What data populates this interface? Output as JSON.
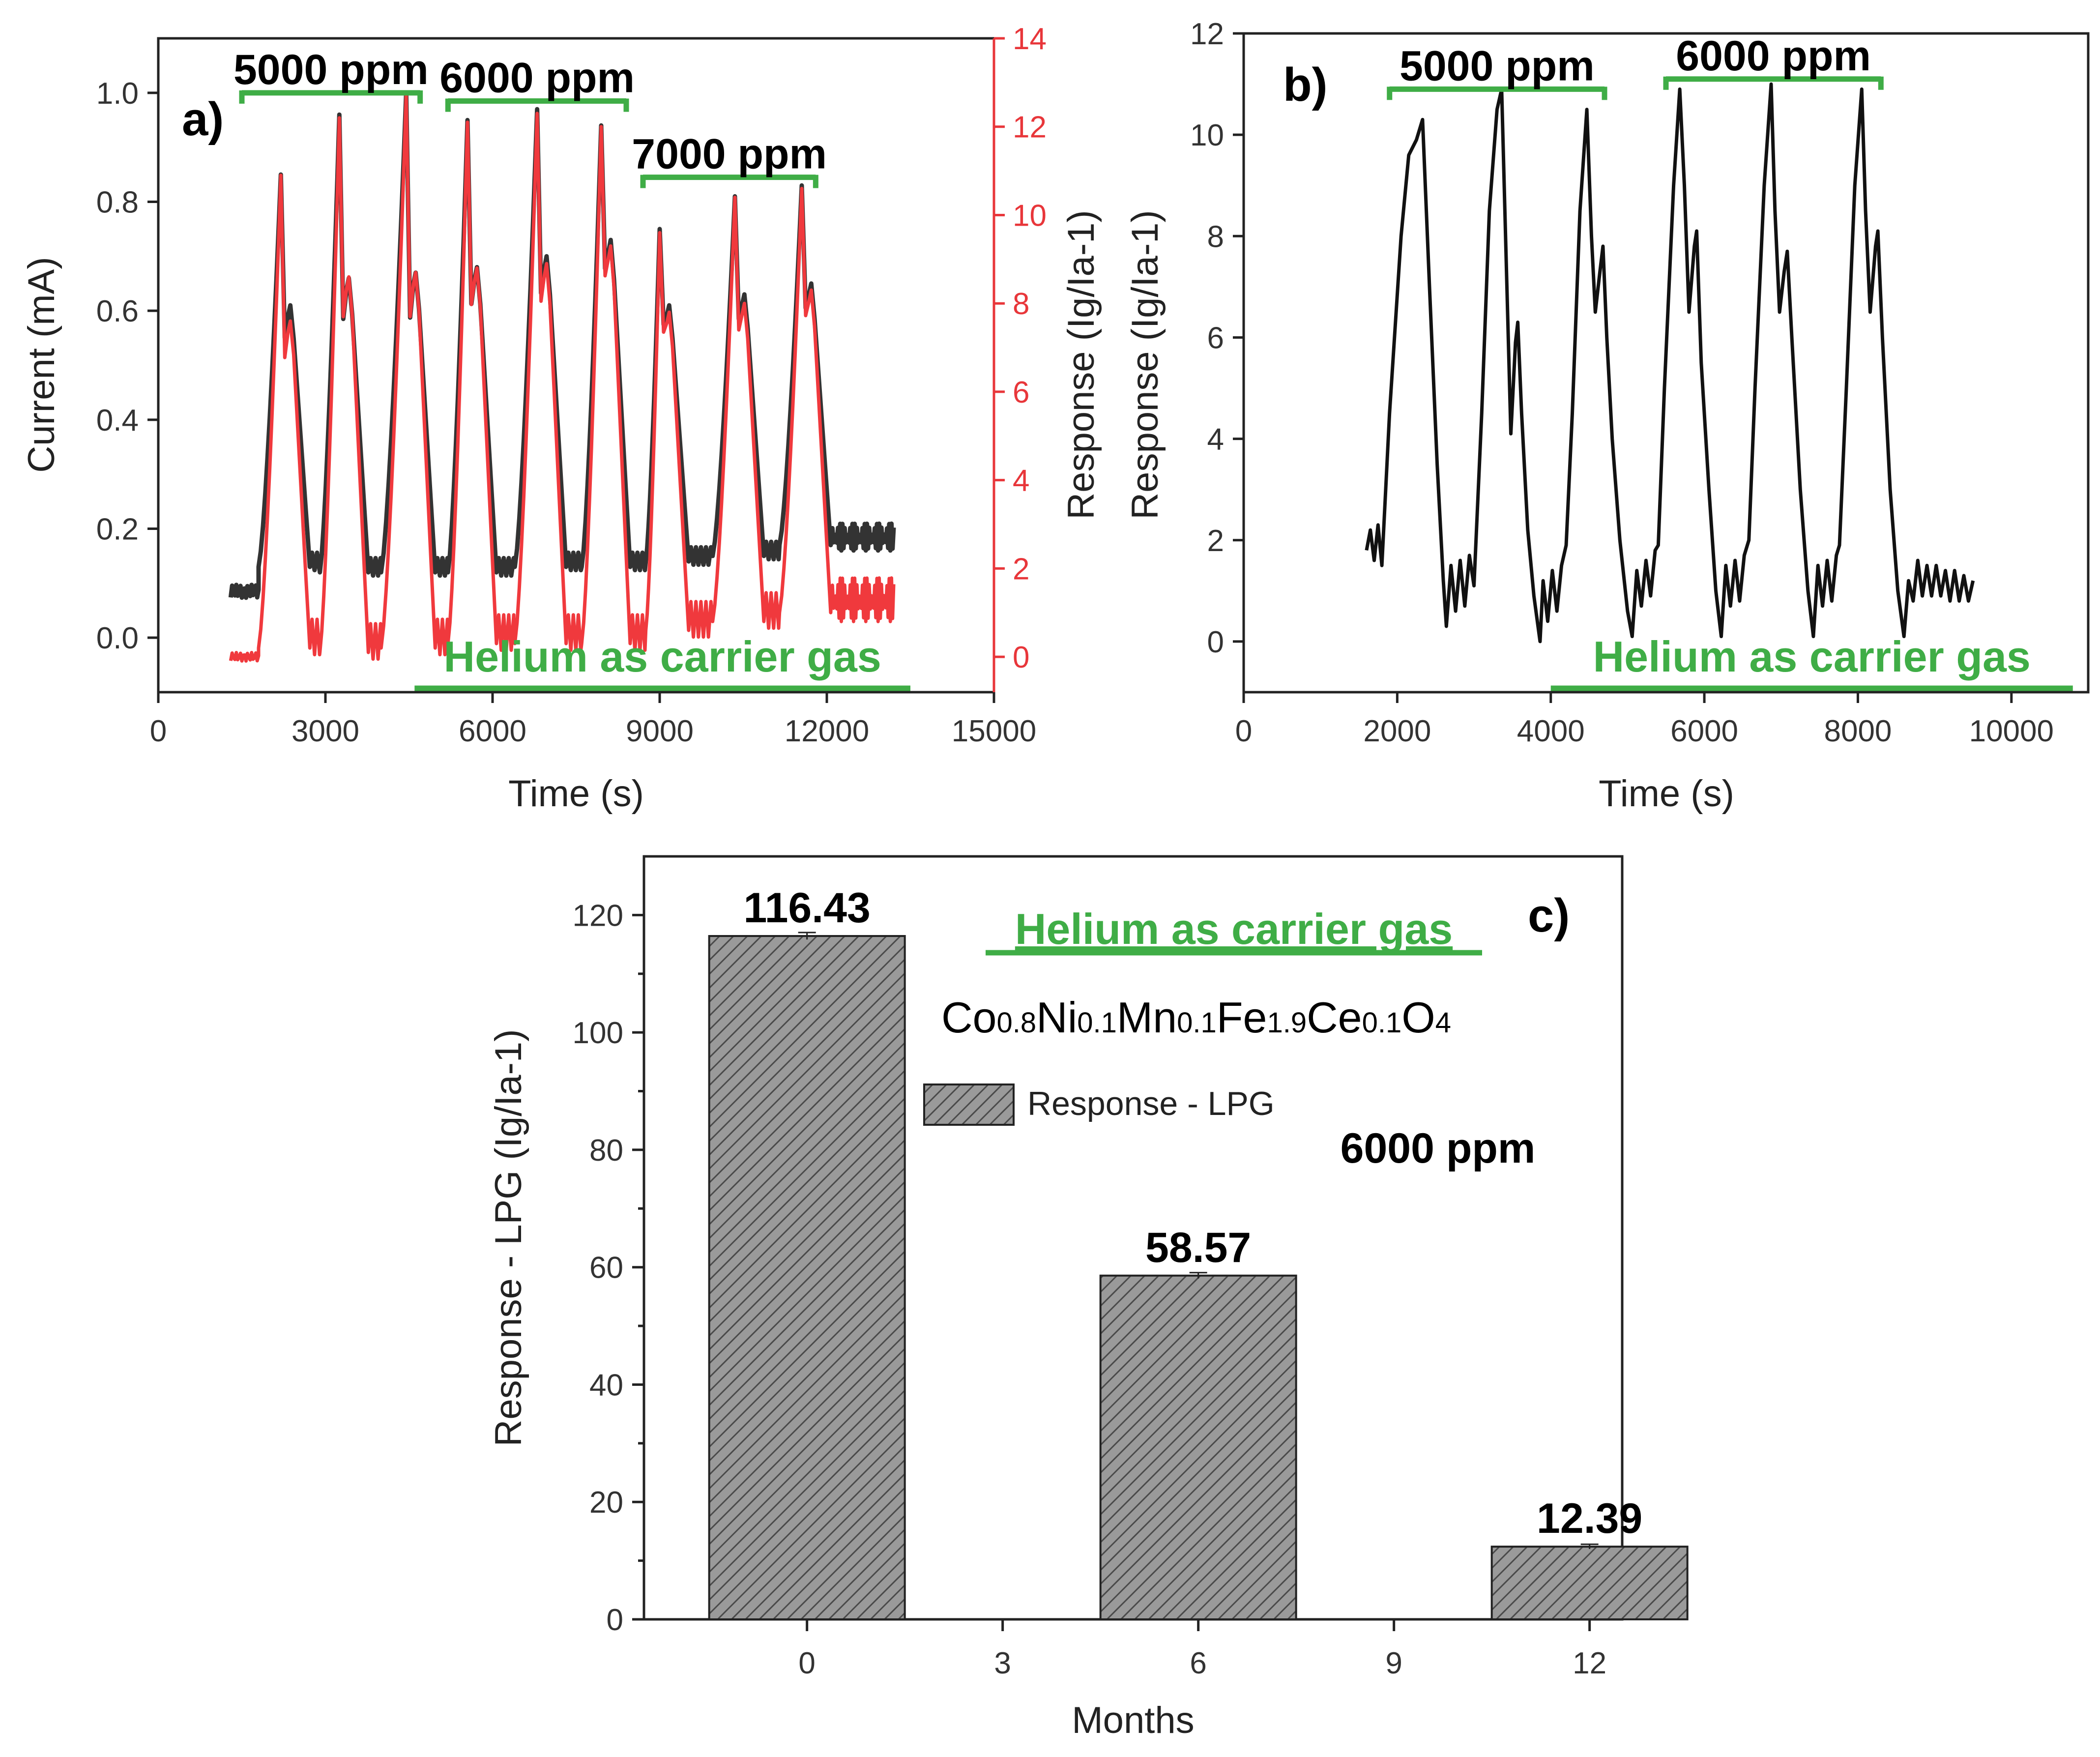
{
  "chart_data": [
    {
      "panel": "a)",
      "type": "line",
      "xlabel": "Time (s)",
      "ylabel": "Current (mA)",
      "ylabel_right": "Response (Ig/Ia-1)",
      "xlim": [
        0,
        15000
      ],
      "ylim": [
        -0.1,
        1.1
      ],
      "ylim_right": [
        -0.8,
        14
      ],
      "xticks": [
        "0",
        "3000",
        "6000",
        "9000",
        "12000",
        "15000"
      ],
      "yticks": [
        "0.0",
        "0.2",
        "0.4",
        "0.6",
        "0.8",
        "1.0"
      ],
      "yticks_right": [
        "0",
        "2",
        "4",
        "6",
        "8",
        "10",
        "12",
        "14"
      ],
      "baseline_segments": [
        {
          "start": 1300,
          "end": 1800,
          "current": 0.085,
          "response": 0.0
        },
        {
          "start": 12100,
          "end": 13200,
          "current": 0.185,
          "response": 1.3
        }
      ],
      "cycles": [
        {
          "t0": 1800,
          "peak_time": 2200,
          "current_peak": 0.85,
          "response_peak": 10.9,
          "current_shoulder": 0.61,
          "response_shoulder": 7.6,
          "current_min": 0.13,
          "response_min": 0.2
        },
        {
          "t0": 2900,
          "peak_time": 3250,
          "current_peak": 0.96,
          "response_peak": 12.2,
          "current_shoulder": 0.66,
          "response_shoulder": 8.6,
          "current_min": 0.12,
          "response_min": 0.1
        },
        {
          "t0": 4000,
          "peak_time": 4450,
          "current_peak": 1.0,
          "response_peak": 12.7,
          "current_shoulder": 0.67,
          "response_shoulder": 8.7,
          "current_min": 0.12,
          "response_min": 0.2
        },
        {
          "t0": 5200,
          "peak_time": 5550,
          "current_peak": 0.95,
          "response_peak": 12.1,
          "current_shoulder": 0.68,
          "response_shoulder": 8.8,
          "current_min": 0.12,
          "response_min": 0.3
        },
        {
          "t0": 6400,
          "peak_time": 6800,
          "current_peak": 0.97,
          "response_peak": 12.3,
          "current_shoulder": 0.7,
          "response_shoulder": 8.9,
          "current_min": 0.13,
          "response_min": 0.3
        },
        {
          "t0": 7600,
          "peak_time": 7950,
          "current_peak": 0.94,
          "response_peak": 12.0,
          "current_shoulder": 0.73,
          "response_shoulder": 9.3,
          "current_min": 0.13,
          "response_min": 0.3
        },
        {
          "t0": 8750,
          "peak_time": 9000,
          "current_peak": 0.75,
          "response_peak": 9.6,
          "current_shoulder": 0.61,
          "response_shoulder": 7.8,
          "current_min": 0.14,
          "response_min": 0.6
        },
        {
          "t0": 9950,
          "peak_time": 10350,
          "current_peak": 0.81,
          "response_peak": 10.4,
          "current_shoulder": 0.63,
          "response_shoulder": 8.0,
          "current_min": 0.15,
          "response_min": 0.8
        },
        {
          "t0": 11150,
          "peak_time": 11550,
          "current_peak": 0.83,
          "response_peak": 10.6,
          "current_shoulder": 0.65,
          "response_shoulder": 8.3,
          "current_min": 0.17,
          "response_min": 1.0
        }
      ],
      "series": [
        {
          "name": "Current (mA)",
          "color": "#333333",
          "axis": "left"
        },
        {
          "name": "Response (Ig/Ia-1)",
          "color": "#f0393d",
          "axis": "right"
        }
      ],
      "annotations": [
        {
          "text": "5000 ppm",
          "x_start": 1500,
          "x_end": 4700,
          "value": 1.0
        },
        {
          "text": "6000 ppm",
          "x_start": 5200,
          "x_end": 8400,
          "value": 0.985
        },
        {
          "text": "7000 ppm",
          "x_start": 8700,
          "x_end": 11800,
          "value": 0.845
        }
      ],
      "carrier_label": {
        "text": "Helium as carrier gas",
        "x_start": 4600,
        "x_end": 13500
      }
    },
    {
      "panel": "b)",
      "type": "line",
      "xlabel": "Time (s)",
      "ylabel": "Response (Ig/Ia-1)",
      "xlim": [
        0,
        11000
      ],
      "ylim": [
        -1,
        12
      ],
      "xticks": [
        "0",
        "2000",
        "4000",
        "6000",
        "8000",
        "10000"
      ],
      "yticks": [
        "0",
        "2",
        "4",
        "6",
        "8",
        "10",
        "12"
      ],
      "points": [
        [
          1600,
          1.8
        ],
        [
          1650,
          2.2
        ],
        [
          1700,
          1.6
        ],
        [
          1750,
          2.3
        ],
        [
          1800,
          1.5
        ],
        [
          1900,
          4.5
        ],
        [
          2050,
          8.0
        ],
        [
          2150,
          9.6
        ],
        [
          2250,
          9.9
        ],
        [
          2330,
          10.3
        ],
        [
          2420,
          7.0
        ],
        [
          2520,
          3.5
        ],
        [
          2600,
          1.2
        ],
        [
          2640,
          0.3
        ],
        [
          2700,
          1.5
        ],
        [
          2760,
          0.6
        ],
        [
          2820,
          1.6
        ],
        [
          2880,
          0.7
        ],
        [
          2940,
          1.7
        ],
        [
          3000,
          1.1
        ],
        [
          3100,
          4.5
        ],
        [
          3200,
          8.5
        ],
        [
          3300,
          10.5
        ],
        [
          3360,
          10.9
        ],
        [
          3420,
          7.5
        ],
        [
          3480,
          4.1
        ],
        [
          3540,
          5.9
        ],
        [
          3570,
          6.3
        ],
        [
          3620,
          4.5
        ],
        [
          3700,
          2.2
        ],
        [
          3780,
          0.9
        ],
        [
          3860,
          0.0
        ],
        [
          3900,
          1.2
        ],
        [
          3960,
          0.4
        ],
        [
          4020,
          1.4
        ],
        [
          4080,
          0.6
        ],
        [
          4140,
          1.5
        ],
        [
          4200,
          1.9
        ],
        [
          4280,
          4.5
        ],
        [
          4380,
          8.5
        ],
        [
          4470,
          10.5
        ],
        [
          4530,
          8.0
        ],
        [
          4580,
          6.5
        ],
        [
          4640,
          7.3
        ],
        [
          4680,
          7.8
        ],
        [
          4730,
          6.0
        ],
        [
          4800,
          4.0
        ],
        [
          4900,
          2.0
        ],
        [
          5000,
          0.6
        ],
        [
          5060,
          0.1
        ],
        [
          5120,
          1.4
        ],
        [
          5180,
          0.7
        ],
        [
          5240,
          1.6
        ],
        [
          5300,
          0.9
        ],
        [
          5360,
          1.8
        ],
        [
          5400,
          1.9
        ],
        [
          5480,
          5.0
        ],
        [
          5600,
          9.0
        ],
        [
          5680,
          10.9
        ],
        [
          5740,
          9.0
        ],
        [
          5800,
          6.5
        ],
        [
          5870,
          7.8
        ],
        [
          5900,
          8.1
        ],
        [
          5960,
          5.5
        ],
        [
          6060,
          3.0
        ],
        [
          6150,
          1.0
        ],
        [
          6220,
          0.1
        ],
        [
          6280,
          1.5
        ],
        [
          6340,
          0.7
        ],
        [
          6400,
          1.6
        ],
        [
          6460,
          0.8
        ],
        [
          6520,
          1.7
        ],
        [
          6580,
          2.0
        ],
        [
          6660,
          5.0
        ],
        [
          6780,
          9.0
        ],
        [
          6870,
          11.0
        ],
        [
          6920,
          8.5
        ],
        [
          6980,
          6.5
        ],
        [
          7040,
          7.3
        ],
        [
          7080,
          7.7
        ],
        [
          7140,
          6.0
        ],
        [
          7250,
          3.0
        ],
        [
          7350,
          1.0
        ],
        [
          7420,
          0.1
        ],
        [
          7480,
          1.5
        ],
        [
          7540,
          0.7
        ],
        [
          7600,
          1.6
        ],
        [
          7660,
          0.8
        ],
        [
          7720,
          1.7
        ],
        [
          7760,
          1.9
        ],
        [
          7850,
          5.0
        ],
        [
          7960,
          9.0
        ],
        [
          8050,
          10.9
        ],
        [
          8100,
          8.5
        ],
        [
          8160,
          6.5
        ],
        [
          8230,
          7.8
        ],
        [
          8260,
          8.1
        ],
        [
          8320,
          6.0
        ],
        [
          8420,
          3.0
        ],
        [
          8520,
          1.0
        ],
        [
          8600,
          0.1
        ],
        [
          8660,
          1.2
        ],
        [
          8720,
          0.8
        ],
        [
          8780,
          1.6
        ],
        [
          8840,
          0.9
        ],
        [
          8900,
          1.5
        ],
        [
          8960,
          0.9
        ],
        [
          9020,
          1.5
        ],
        [
          9080,
          0.9
        ],
        [
          9140,
          1.4
        ],
        [
          9200,
          0.8
        ],
        [
          9260,
          1.4
        ],
        [
          9320,
          0.8
        ],
        [
          9380,
          1.3
        ],
        [
          9440,
          0.8
        ],
        [
          9500,
          1.2
        ]
      ],
      "annotations": [
        {
          "text": "5000 ppm",
          "x_start": 1900,
          "x_end": 4700,
          "value": 10.9
        },
        {
          "text": "6000 ppm",
          "x_start": 5500,
          "x_end": 8300,
          "value": 11.1
        }
      ],
      "carrier_label": {
        "text": "Helium as carrier gas",
        "x_start": 4000,
        "x_end": 10800
      }
    },
    {
      "panel": "c)",
      "type": "bar",
      "xlabel": "Months",
      "ylabel": "Response - LPG (Ig/Ia-1)",
      "xlim": [
        -2.5,
        12.5
      ],
      "ylim": [
        0,
        130
      ],
      "xticks": [
        "0",
        "3",
        "6",
        "9",
        "12"
      ],
      "yticks": [
        "0",
        "20",
        "40",
        "60",
        "80",
        "100",
        "120"
      ],
      "bar_width_months": 3,
      "categories": [
        0,
        6,
        12
      ],
      "values": [
        116.43,
        58.57,
        12.39
      ],
      "value_labels": [
        "116.43",
        "58.57",
        "12.39"
      ],
      "error": [
        0.6,
        0.5,
        0.4
      ],
      "legend": "Response - LPG",
      "carrier_label": "Helium as carrier gas",
      "formula": [
        {
          "t": "Co",
          "sub": false
        },
        {
          "t": "0.8",
          "sub": true
        },
        {
          "t": "Ni",
          "sub": false
        },
        {
          "t": "0.1",
          "sub": true
        },
        {
          "t": "Mn",
          "sub": false
        },
        {
          "t": "0.1",
          "sub": true
        },
        {
          "t": "Fe",
          "sub": false
        },
        {
          "t": "1.9",
          "sub": true
        },
        {
          "t": "Ce",
          "sub": false
        },
        {
          "t": "0.1",
          "sub": true
        },
        {
          "t": "O",
          "sub": false
        },
        {
          "t": "4",
          "sub": true
        }
      ],
      "concentration": "6000 ppm"
    }
  ]
}
